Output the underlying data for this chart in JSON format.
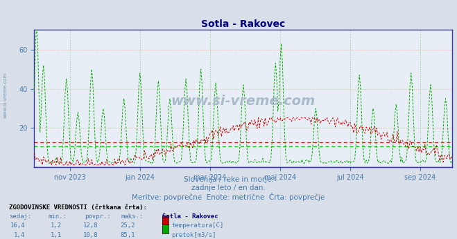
{
  "title": "Sotla - Rakovec",
  "title_color": "#000080",
  "bg_color": "#d8dfe8",
  "plot_bg_color": "#e8eef5",
  "subtitle_lines": [
    "Slovenija / reke in morje.",
    "zadnje leto / en dan.",
    "Meritve: povprečne  Enote: metrične  Črta: povprečje"
  ],
  "subtitle_color": "#4477aa",
  "table_header": "ZGODOVINSKE VREDNOSTI (črtkana črta):",
  "table_cols": [
    "sedaj:",
    "min.:",
    "povpr.:",
    "maks.:",
    "Sotla - Rakovec"
  ],
  "table_col_color": "#4477aa",
  "table_name_color": "#000080",
  "table_rows": [
    {
      "values": [
        "16,4",
        "1,2",
        "12,8",
        "25,2"
      ],
      "label": "temperatura[C]",
      "color": "#cc0000"
    },
    {
      "values": [
        "1,4",
        "1,1",
        "10,8",
        "85,1"
      ],
      "label": "pretok[m3/s]",
      "color": "#00aa00"
    }
  ],
  "watermark": "www.si-vreme.com",
  "watermark_color": "#aabbcc",
  "side_text": "www.si-vreme.com",
  "ylim": [
    0,
    70
  ],
  "yticks": [
    20,
    40,
    60
  ],
  "grid_color_h": "#ffaaaa",
  "grid_color_v": "#99cc99",
  "temp_color": "#cc0000",
  "flow_color": "#00aa00",
  "temp_avg_color": "#cc2222",
  "flow_avg_color": "#00bb00",
  "axis_color": "#3333aa",
  "tick_color": "#4477aa",
  "n_points": 365,
  "xtick_positions": [
    31,
    92,
    153,
    214,
    275,
    336
  ],
  "xtick_labels": [
    "nov 2023",
    "jan 2024",
    "mar 2024",
    "maj 2024",
    "jul 2024",
    "sep 2024"
  ],
  "temp_avg": 12.8,
  "flow_avg": 10.8
}
